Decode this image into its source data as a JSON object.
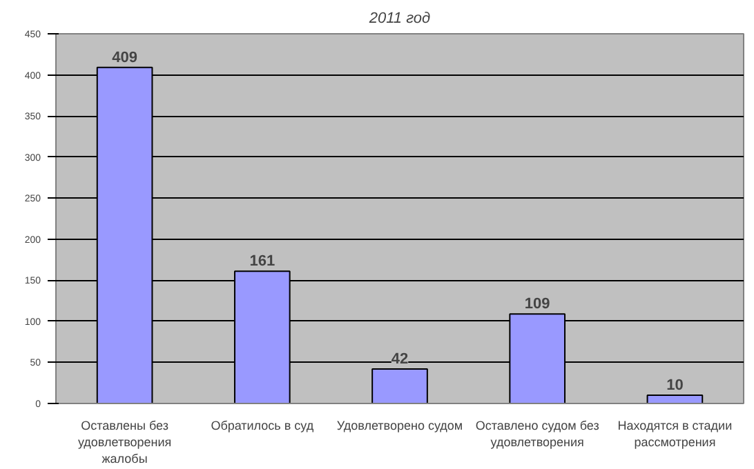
{
  "chart_data": {
    "type": "bar",
    "title": "2011 год",
    "categories": [
      "Оставлены без удовлетворения жалобы",
      "Обратилось в суд",
      "Удовлетворено судом",
      "Оставлено судом без удовлетворения",
      "Находятся в стадии рассмотрения"
    ],
    "values": [
      409,
      161,
      42,
      109,
      10
    ],
    "color": "#9999ff",
    "ylim": [
      0,
      450
    ],
    "yticks": [
      0,
      50,
      100,
      150,
      200,
      250,
      300,
      350,
      400,
      450
    ],
    "grid": "y",
    "data_labels": true
  }
}
